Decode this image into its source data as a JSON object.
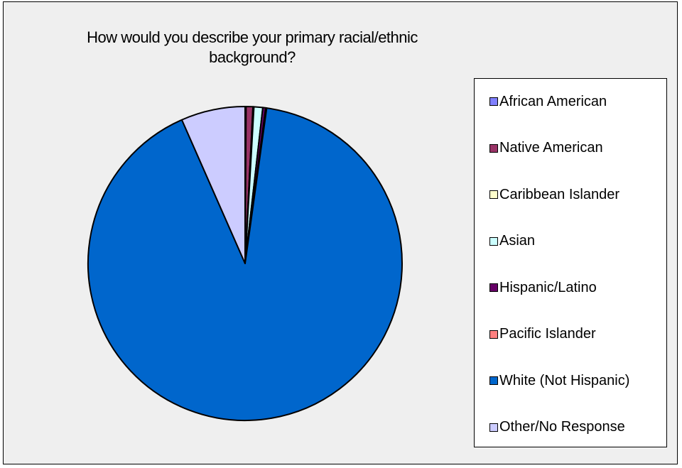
{
  "chart_data": {
    "type": "pie",
    "title": "How would you describe your primary racial/ethnic\nbackground?",
    "legend_position": "right",
    "categories": [
      "African American",
      "Native American",
      "Caribbean Islander",
      "Asian",
      "Hispanic/Latino",
      "Pacific Islander",
      "White (Not Hispanic)",
      "Other/No Response"
    ],
    "values": [
      0.1,
      0.7,
      0.1,
      0.9,
      0.3,
      0.1,
      91.2,
      6.6
    ],
    "units": "percent (estimated)",
    "colors": [
      "#8080ff",
      "#993366",
      "#ffffcc",
      "#ccffff",
      "#660066",
      "#ff8080",
      "#0066cc",
      "#ccccff"
    ]
  }
}
